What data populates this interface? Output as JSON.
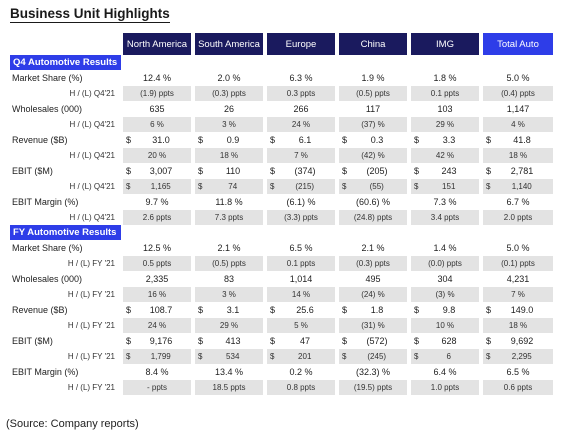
{
  "title": "Business Unit Highlights",
  "columns": [
    "North America",
    "South America",
    "Europe",
    "China",
    "IMG",
    "Total Auto"
  ],
  "sections": [
    {
      "label": "Q4 Automotive Results",
      "rows": [
        {
          "label": "Market Share (%)",
          "values": [
            "12.4  %",
            "2.0  %",
            "6.3  %",
            "1.9  %",
            "1.8  %",
            "5.0  %"
          ],
          "sub_label": "H / (L) Q4'21",
          "sub_values": [
            "(1.9)  ppts",
            "(0.3)  ppts",
            "0.3  ppts",
            "(0.5)  ppts",
            "0.1  ppts",
            "(0.4)  ppts"
          ]
        },
        {
          "label": "Wholesales (000)",
          "values": [
            "635",
            "26",
            "266",
            "117",
            "103",
            "1,147"
          ],
          "sub_label": "H / (L) Q4'21",
          "sub_values": [
            "6  %",
            "3  %",
            "24  %",
            "(37)  %",
            "29  %",
            "4  %"
          ]
        },
        {
          "label": "Revenue ($B)",
          "dollar": true,
          "values": [
            "31.0",
            "0.9",
            "6.1",
            "0.3",
            "3.3",
            "41.8"
          ],
          "sub_label": "H / (L) Q4'21",
          "sub_values": [
            "20  %",
            "18  %",
            "7  %",
            "(42)  %",
            "42  %",
            "18  %"
          ]
        },
        {
          "label": "EBIT ($M)",
          "dollar": true,
          "values": [
            "3,007",
            "110",
            "(374)",
            "(205)",
            "243",
            "2,781"
          ],
          "sub_label": "H / (L) Q4'21",
          "sub_dollar": true,
          "sub_values": [
            "1,165",
            "74",
            "(215)",
            "(55)",
            "151",
            "1,140"
          ]
        },
        {
          "label": "EBIT Margin (%)",
          "values": [
            "9.7  %",
            "11.8  %",
            "(6.1)  %",
            "(60.6)  %",
            "7.3  %",
            "6.7  %"
          ],
          "sub_label": "H / (L) Q4'21",
          "sub_values": [
            "2.6  ppts",
            "7.3  ppts",
            "(3.3)  ppts",
            "(24.8)  ppts",
            "3.4  ppts",
            "2.0  ppts"
          ]
        }
      ]
    },
    {
      "label": "FY Automotive Results",
      "rows": [
        {
          "label": "Market Share (%)",
          "values": [
            "12.5  %",
            "2.1  %",
            "6.5  %",
            "2.1  %",
            "1.4  %",
            "5.0  %"
          ],
          "sub_label": "H / (L) FY '21",
          "sub_values": [
            "0.5  ppts",
            "(0.5)  ppts",
            "0.1  ppts",
            "(0.3)  ppts",
            "(0.0)  ppts",
            "(0.1)  ppts"
          ]
        },
        {
          "label": "Wholesales (000)",
          "values": [
            "2,335",
            "83",
            "1,014",
            "495",
            "304",
            "4,231"
          ],
          "sub_label": "H / (L) FY '21",
          "sub_values": [
            "16  %",
            "3  %",
            "14  %",
            "(24)  %",
            "(3)  %",
            "7  %"
          ]
        },
        {
          "label": "Revenue ($B)",
          "dollar": true,
          "values": [
            "108.7",
            "3.1",
            "25.6",
            "1.8",
            "9.8",
            "149.0"
          ],
          "sub_label": "H / (L) FY '21",
          "sub_values": [
            "24  %",
            "29  %",
            "5  %",
            "(31)  %",
            "10  %",
            "18  %"
          ]
        },
        {
          "label": "EBIT ($M)",
          "dollar": true,
          "values": [
            "9,176",
            "413",
            "47",
            "(572)",
            "628",
            "9,692"
          ],
          "sub_label": "H / (L) FY '21",
          "sub_dollar": true,
          "sub_values": [
            "1,799",
            "534",
            "201",
            "(245)",
            "6",
            "2,295"
          ]
        },
        {
          "label": "EBIT Margin (%)",
          "values": [
            "8.4  %",
            "13.4  %",
            "0.2  %",
            "(32.3)  %",
            "6.4  %",
            "6.5  %"
          ],
          "sub_label": "H / (L) FY '21",
          "sub_values": [
            "-  ppts",
            "18.5  ppts",
            "0.8  ppts",
            "(19.5)  ppts",
            "1.0  ppts",
            "0.6  ppts"
          ]
        }
      ]
    }
  ],
  "source": "(Source: Company reports)"
}
